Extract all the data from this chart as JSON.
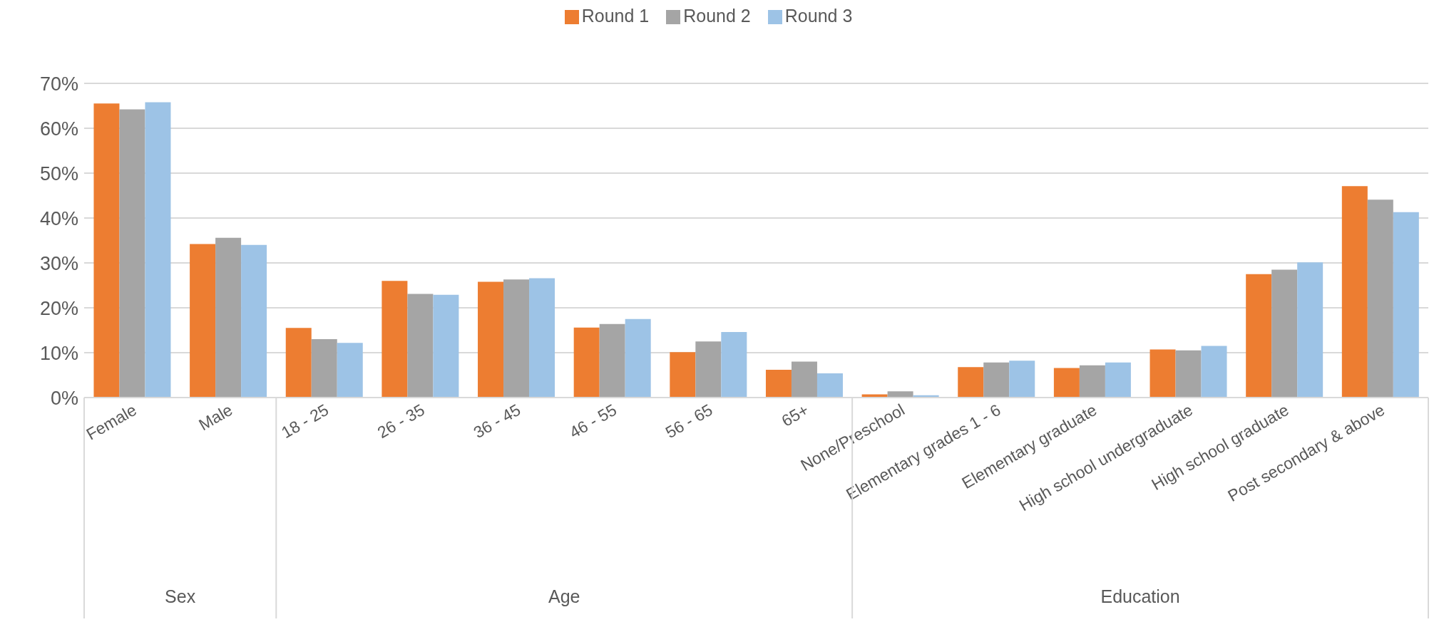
{
  "chart_data": {
    "type": "bar",
    "categories": [
      "Female",
      "Male",
      "18 - 25",
      "26 - 35",
      "36 - 45",
      "46 - 55",
      "56 - 65",
      "65+",
      "None/Preschool",
      "Elementary grades 1 - 6",
      "Elementary graduate",
      "High school undergraduate",
      "High school graduate",
      "Post secondary & above"
    ],
    "series": [
      {
        "name": "Round 1",
        "color": "#ed7d31",
        "values": [
          65.5,
          34.2,
          15.5,
          26.0,
          25.8,
          15.6,
          10.1,
          6.2,
          0.7,
          6.8,
          6.6,
          10.7,
          27.5,
          47.1
        ]
      },
      {
        "name": "Round 2",
        "color": "#a5a5a5",
        "values": [
          64.2,
          35.6,
          13.0,
          23.1,
          26.3,
          16.4,
          12.5,
          8.0,
          1.4,
          7.8,
          7.2,
          10.5,
          28.5,
          44.1
        ]
      },
      {
        "name": "Round 3",
        "color": "#9dc3e6",
        "values": [
          65.8,
          34.0,
          12.2,
          22.9,
          26.6,
          17.5,
          14.6,
          5.4,
          0.5,
          8.2,
          7.8,
          11.5,
          30.1,
          41.3
        ]
      }
    ],
    "ylim": [
      0,
      70
    ],
    "yticks": [
      {
        "value": 0,
        "label": "0%"
      },
      {
        "value": 10,
        "label": "10%"
      },
      {
        "value": 20,
        "label": "20%"
      },
      {
        "value": 30,
        "label": "30%"
      },
      {
        "value": 40,
        "label": "40%"
      },
      {
        "value": 50,
        "label": "50%"
      },
      {
        "value": 60,
        "label": "60%"
      },
      {
        "value": 70,
        "label": "70%"
      }
    ],
    "grid": "y",
    "legend": "top",
    "annotations": [
      "Sex",
      "Age",
      "Education"
    ]
  }
}
